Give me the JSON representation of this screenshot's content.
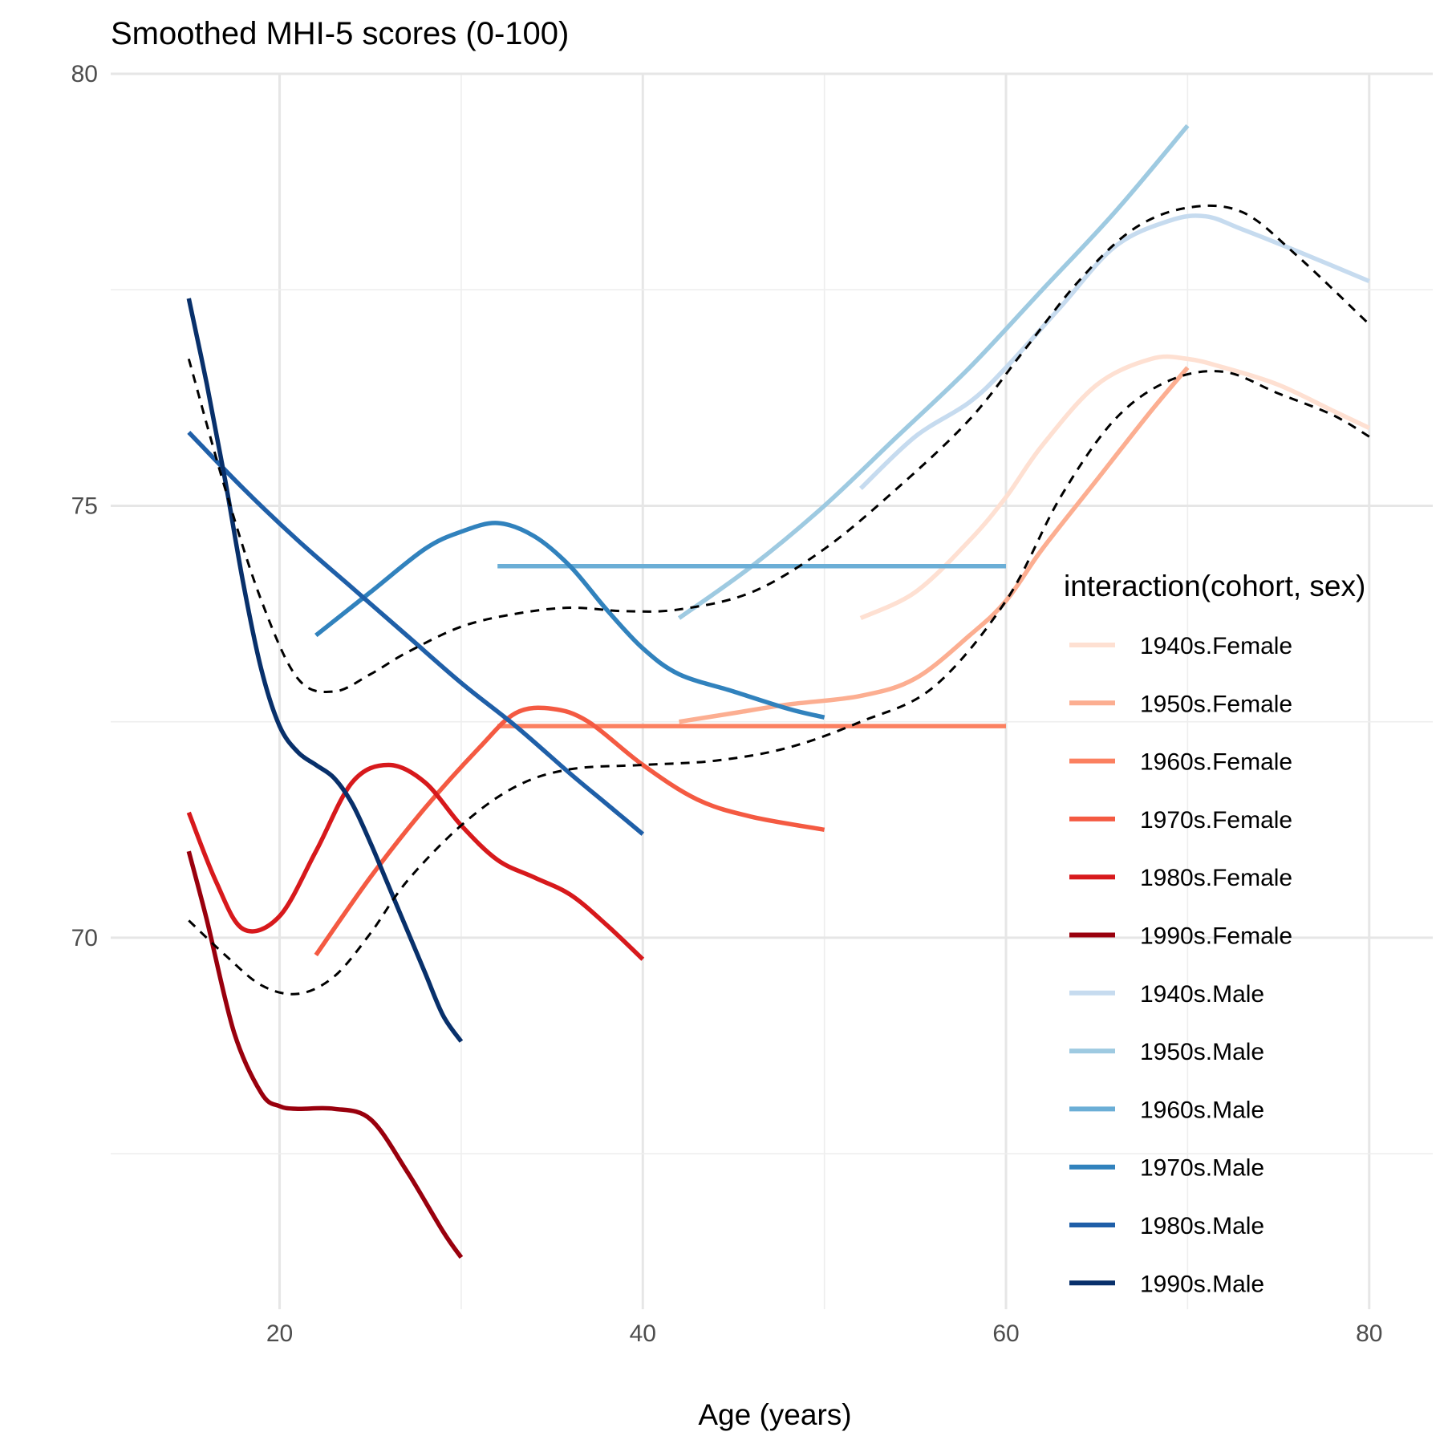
{
  "chart_data": {
    "type": "line",
    "title": "Smoothed MHI-5 scores (0-100)",
    "xlabel": "Age (years)",
    "ylabel": "",
    "xlim": [
      10.7,
      83.5
    ],
    "ylim": [
      65.7,
      80
    ],
    "x_ticks": [
      20,
      40,
      60,
      80
    ],
    "y_ticks": [
      70,
      75,
      80
    ],
    "grid": true,
    "legend_title": "interaction(cohort, sex)",
    "legend_position": "right",
    "series": [
      {
        "name": "1940s.Female",
        "color": "#fee0d2",
        "x": [
          52,
          55,
          58,
          60,
          62,
          65,
          68,
          70,
          72,
          75,
          78,
          80
        ],
        "y": [
          73.7,
          74.0,
          74.6,
          75.1,
          75.7,
          76.4,
          76.7,
          76.7,
          76.6,
          76.4,
          76.1,
          75.9
        ]
      },
      {
        "name": "1950s.Female",
        "color": "#fcae91",
        "x": [
          42,
          45,
          48,
          52,
          55,
          58,
          60,
          62,
          65,
          68,
          70
        ],
        "y": [
          72.5,
          72.6,
          72.7,
          72.8,
          73.0,
          73.5,
          73.9,
          74.5,
          75.3,
          76.1,
          76.6
        ]
      },
      {
        "name": "1960s.Female",
        "color": "#fb8060",
        "x": [
          32,
          60
        ],
        "y": [
          72.45,
          72.45
        ]
      },
      {
        "name": "1970s.Female",
        "color": "#f45a42",
        "x": [
          22,
          25,
          28,
          31,
          33,
          35,
          37,
          40,
          43,
          46,
          50
        ],
        "y": [
          69.8,
          70.7,
          71.5,
          72.2,
          72.6,
          72.65,
          72.5,
          72.0,
          71.6,
          71.4,
          71.25
        ]
      },
      {
        "name": "1980s.Female",
        "color": "#d7191c",
        "x": [
          15,
          16.5,
          18,
          20,
          22,
          24,
          26,
          28,
          30,
          32,
          34,
          36,
          38,
          40
        ],
        "y": [
          71.45,
          70.65,
          70.1,
          70.25,
          71.0,
          71.8,
          72.0,
          71.8,
          71.3,
          70.9,
          70.7,
          70.5,
          70.15,
          69.75
        ]
      },
      {
        "name": "1990s.Female",
        "color": "#99000d",
        "x": [
          15,
          16,
          17.5,
          19,
          20,
          21,
          23,
          25,
          27,
          29,
          30
        ],
        "y": [
          71.0,
          70.2,
          68.9,
          68.2,
          68.05,
          68.02,
          68.02,
          67.9,
          67.3,
          66.6,
          66.3
        ]
      },
      {
        "name": "1940s.Male",
        "color": "#c6dbef",
        "x": [
          52,
          55,
          58,
          60,
          63,
          66,
          69,
          71,
          73,
          76,
          80
        ],
        "y": [
          75.2,
          75.8,
          76.2,
          76.6,
          77.3,
          78.0,
          78.3,
          78.35,
          78.2,
          77.95,
          77.6
        ]
      },
      {
        "name": "1950s.Male",
        "color": "#9ecae1",
        "x": [
          42,
          46,
          50,
          54,
          58,
          62,
          66,
          70
        ],
        "y": [
          73.7,
          74.3,
          75.0,
          75.8,
          76.6,
          77.5,
          78.4,
          79.4
        ]
      },
      {
        "name": "1960s.Male",
        "color": "#6baed6",
        "x": [
          32,
          60
        ],
        "y": [
          74.3,
          74.3
        ]
      },
      {
        "name": "1970s.Male",
        "color": "#3182bd",
        "x": [
          22,
          25,
          28,
          30,
          32,
          34,
          36,
          38,
          40,
          42,
          45,
          48,
          50
        ],
        "y": [
          73.5,
          74.0,
          74.5,
          74.7,
          74.8,
          74.65,
          74.3,
          73.8,
          73.35,
          73.05,
          72.85,
          72.65,
          72.55
        ]
      },
      {
        "name": "1980s.Male",
        "color": "#1f5fa8",
        "x": [
          15,
          18,
          21,
          24,
          27,
          30,
          33,
          36,
          38,
          40
        ],
        "y": [
          75.85,
          75.2,
          74.6,
          74.05,
          73.5,
          72.95,
          72.45,
          71.9,
          71.55,
          71.2
        ]
      },
      {
        "name": "1990s.Male",
        "color": "#08306b",
        "x": [
          15,
          16,
          17,
          18,
          19,
          20,
          21,
          22,
          23,
          24,
          25,
          26,
          27,
          28,
          29,
          30
        ],
        "y": [
          77.4,
          76.4,
          75.3,
          74.1,
          73.1,
          72.45,
          72.15,
          72.0,
          71.85,
          71.55,
          71.1,
          70.6,
          70.1,
          69.6,
          69.1,
          68.8
        ]
      }
    ],
    "reference_lines": [
      {
        "x": [
          15,
          17,
          19,
          21,
          23,
          25,
          27,
          30,
          33,
          36,
          39,
          42,
          46,
          50,
          54,
          58,
          61,
          64,
          67,
          70,
          73,
          76,
          80
        ],
        "y": [
          76.7,
          75.2,
          73.9,
          73.0,
          72.85,
          73.05,
          73.3,
          73.6,
          73.75,
          73.82,
          73.78,
          73.8,
          74.0,
          74.5,
          75.2,
          76.0,
          76.8,
          77.6,
          78.2,
          78.45,
          78.4,
          77.9,
          77.1
        ],
        "style": "dashed",
        "color": "#000000"
      },
      {
        "x": [
          15,
          17,
          19,
          21,
          23,
          25,
          27,
          30,
          33,
          36,
          40,
          44,
          48,
          52,
          56,
          60,
          63,
          66,
          69,
          72,
          75,
          78,
          80
        ],
        "y": [
          70.2,
          69.8,
          69.45,
          69.35,
          69.55,
          70.05,
          70.65,
          71.3,
          71.75,
          71.95,
          72.0,
          72.05,
          72.2,
          72.5,
          72.9,
          73.9,
          75.1,
          76.0,
          76.45,
          76.55,
          76.3,
          76.05,
          75.8
        ],
        "style": "dashed",
        "color": "#000000"
      }
    ]
  }
}
